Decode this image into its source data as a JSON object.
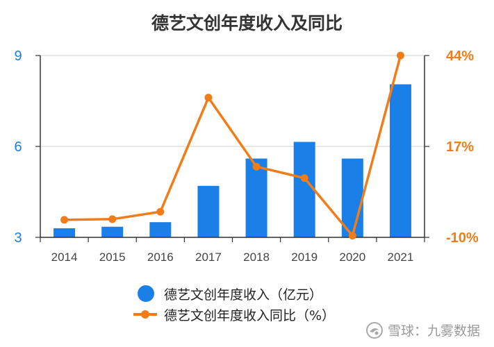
{
  "chart_data": {
    "type": "bar+line",
    "title": "德艺文创年度收入及同比",
    "categories": [
      "2014",
      "2015",
      "2016",
      "2017",
      "2018",
      "2019",
      "2020",
      "2021"
    ],
    "series": [
      {
        "name": "德艺文创年度收入（亿元）",
        "type": "bar",
        "axis": "left",
        "color": "#1a7fe6",
        "values": [
          3.3,
          3.35,
          3.5,
          4.7,
          5.6,
          6.15,
          5.6,
          8.05
        ]
      },
      {
        "name": "德艺文创年度收入同比（%）",
        "type": "line",
        "axis": "right",
        "color": "#f07d1a",
        "values": [
          -4.8,
          -4.6,
          -2.4,
          31.5,
          11.0,
          7.6,
          -9.5,
          44.0
        ]
      }
    ],
    "y_left": {
      "min": 3,
      "max": 9,
      "ticks": [
        "3",
        "6",
        "9"
      ],
      "tick_values": [
        3,
        6,
        9
      ],
      "color": "#1a7fe6"
    },
    "y_right": {
      "min": -10,
      "max": 44,
      "ticks": [
        "-10%",
        "17%",
        "44%"
      ],
      "tick_values": [
        -10,
        17,
        44
      ],
      "color": "#f07d1a"
    },
    "grid": true,
    "legend_position": "bottom"
  },
  "watermark": {
    "icon": "snowball-icon",
    "text": "雪球：九雾数据"
  }
}
